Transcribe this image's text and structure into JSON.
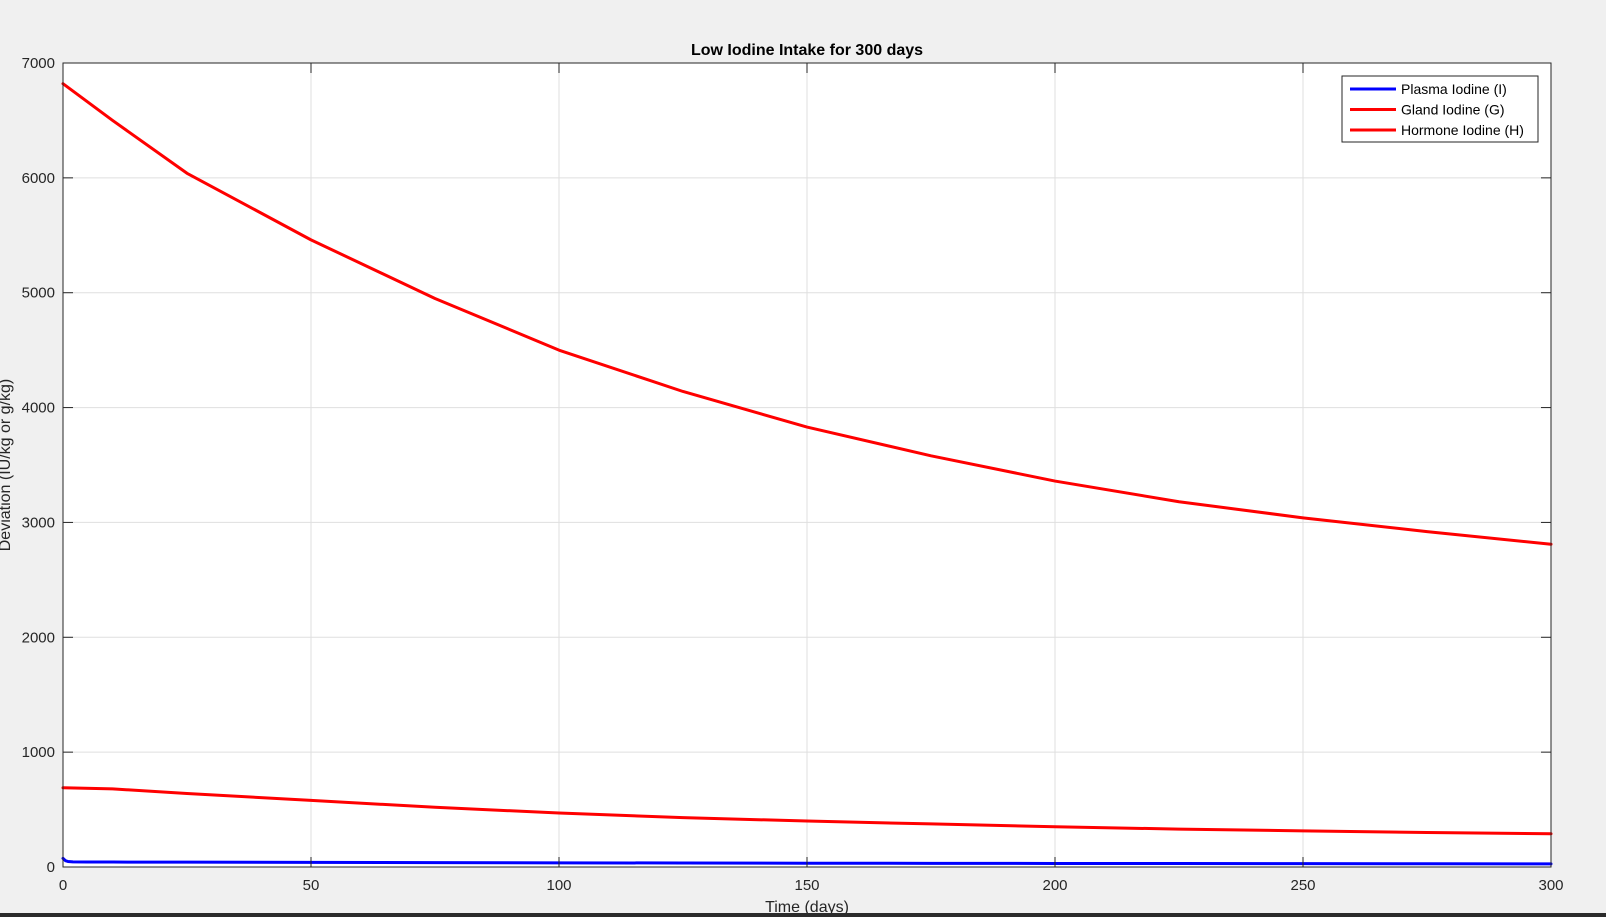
{
  "window": {
    "background": "#f0f0f0"
  },
  "chart_data": {
    "type": "line",
    "title": "Low Iodine Intake for 300 days",
    "xlabel": "Time (days)",
    "ylabel": "Deviation (IU/kg or g/kg)",
    "xlim": [
      0,
      300
    ],
    "ylim": [
      0,
      7000
    ],
    "xticks": [
      0,
      50,
      100,
      150,
      200,
      250,
      300
    ],
    "yticks": [
      0,
      1000,
      2000,
      3000,
      4000,
      5000,
      6000,
      7000
    ],
    "grid": true,
    "legend_position": "top-right",
    "series": [
      {
        "name": "Plasma Iodine (I)",
        "color": "#0000ff",
        "x": [
          0,
          0.5,
          1,
          2,
          5,
          10,
          25,
          50,
          75,
          100,
          125,
          150,
          175,
          200,
          225,
          250,
          275,
          300
        ],
        "y": [
          75,
          55,
          48,
          45,
          44,
          43,
          42,
          40,
          38,
          36,
          35,
          33,
          32,
          31,
          30,
          29,
          28,
          27
        ]
      },
      {
        "name": "Gland Iodine (G)",
        "color": "#ff0000",
        "x": [
          0,
          10,
          25,
          50,
          75,
          100,
          125,
          150,
          175,
          200,
          225,
          250,
          275,
          300
        ],
        "y": [
          6820,
          6500,
          6040,
          5460,
          4950,
          4500,
          4140,
          3830,
          3580,
          3360,
          3180,
          3040,
          2920,
          2810
        ]
      },
      {
        "name": "Hormone Iodine (H)",
        "color": "#ff0000",
        "x": [
          0,
          10,
          25,
          50,
          75,
          100,
          125,
          150,
          175,
          200,
          225,
          250,
          275,
          300
        ],
        "y": [
          690,
          680,
          640,
          580,
          520,
          470,
          430,
          400,
          375,
          350,
          330,
          315,
          300,
          290
        ]
      }
    ]
  }
}
